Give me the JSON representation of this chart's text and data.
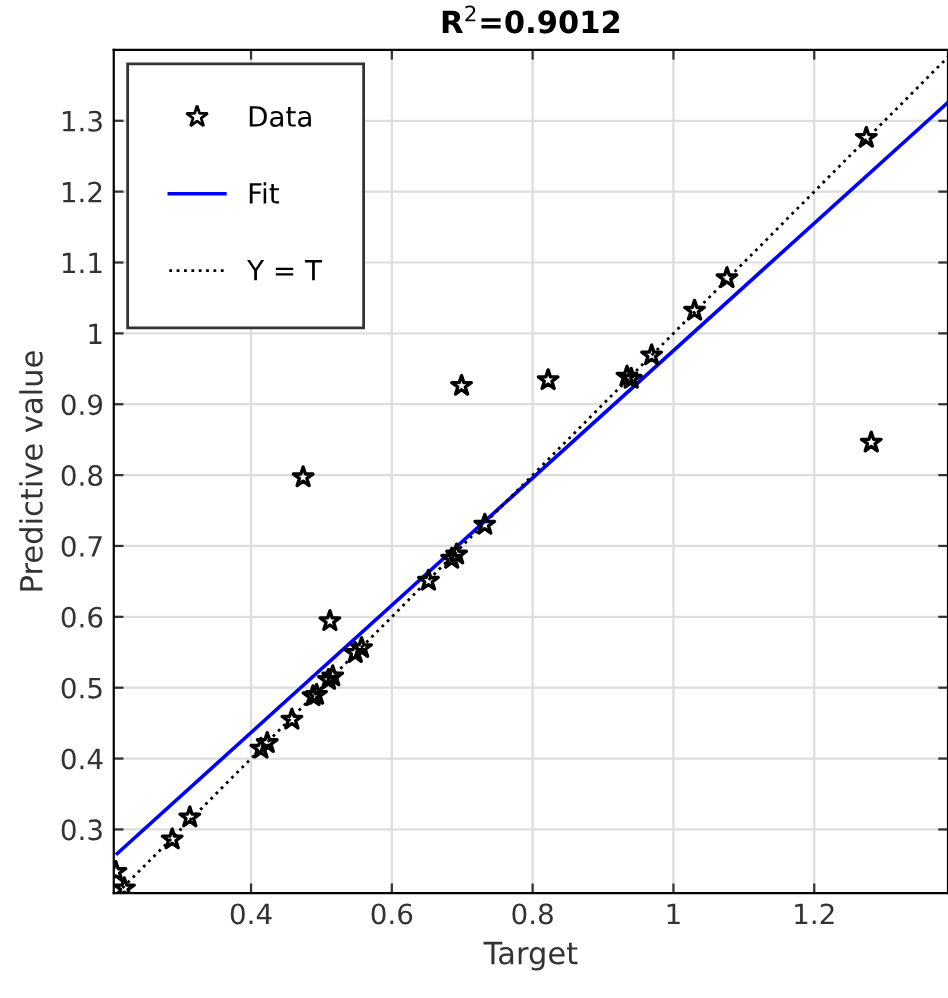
{
  "chart_data": {
    "type": "scatter",
    "title": "R$^{2}$=0.9012",
    "xlabel": "Target",
    "ylabel": "Predictive value",
    "xlim": [
      0.205,
      1.39
    ],
    "ylim": [
      0.21,
      1.4
    ],
    "xticks": [
      0.4,
      0.6,
      0.8,
      1,
      1.2
    ],
    "yticks": [
      0.3,
      0.4,
      0.5,
      0.6,
      0.7,
      0.8,
      0.9,
      1,
      1.1,
      1.2,
      1.3
    ],
    "grid": true,
    "legend": "top left",
    "series": [
      {
        "name": "Data",
        "marker": "star",
        "color": "#000000",
        "x": [
          0.208,
          0.22,
          0.288,
          0.313,
          0.414,
          0.423,
          0.458,
          0.488,
          0.493,
          0.51,
          0.516,
          0.512,
          0.548,
          0.557,
          0.652,
          0.685,
          0.692,
          0.732,
          0.474,
          0.699,
          0.822,
          0.934,
          0.94,
          0.969,
          1.03,
          1.076,
          1.274,
          1.281
        ],
        "values": [
          0.24,
          0.217,
          0.286,
          0.317,
          0.414,
          0.422,
          0.455,
          0.488,
          0.49,
          0.511,
          0.516,
          0.594,
          0.549,
          0.556,
          0.651,
          0.682,
          0.688,
          0.73,
          0.797,
          0.926,
          0.934,
          0.939,
          0.936,
          0.969,
          1.032,
          1.078,
          1.276,
          0.846
        ]
      },
      {
        "name": "Fit",
        "type": "line",
        "line_style": "solid",
        "color": "#0000ff",
        "x": [
          0.21,
          1.39
        ],
        "values": [
          0.266,
          1.326
        ]
      },
      {
        "name": "Y = T",
        "type": "line",
        "line_style": "dotted",
        "color": "#000000",
        "x": [
          0.21,
          1.39
        ],
        "values": [
          0.21,
          1.39
        ]
      }
    ]
  }
}
